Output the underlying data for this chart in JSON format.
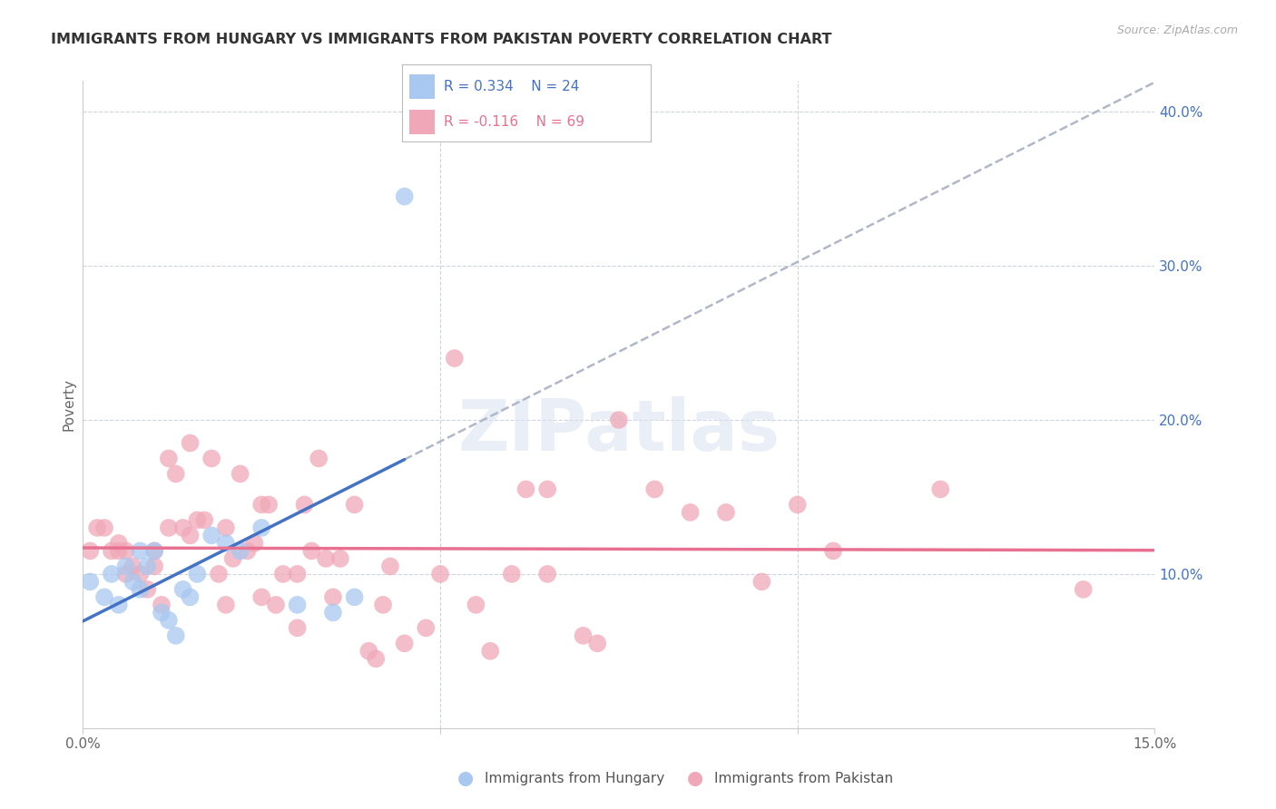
{
  "title": "IMMIGRANTS FROM HUNGARY VS IMMIGRANTS FROM PAKISTAN POVERTY CORRELATION CHART",
  "source": "Source: ZipAtlas.com",
  "ylabel": "Poverty",
  "xlim": [
    0.0,
    0.15
  ],
  "ylim": [
    0.0,
    0.42
  ],
  "hungary_color": "#a8c8f0",
  "pakistan_color": "#f0a8b8",
  "hungary_line_color": "#4472c4",
  "pakistan_line_color": "#e87090",
  "trend_line_color": "#b0b8c8",
  "legend_hungary_label": "Immigrants from Hungary",
  "legend_pakistan_label": "Immigrants from Pakistan",
  "R_hungary": 0.334,
  "N_hungary": 24,
  "R_pakistan": -0.116,
  "N_pakistan": 69,
  "watermark": "ZIPatlas",
  "background_color": "#ffffff",
  "grid_color": "#ccd5e0",
  "hungary_x": [
    0.001,
    0.003,
    0.004,
    0.005,
    0.006,
    0.007,
    0.008,
    0.008,
    0.009,
    0.01,
    0.011,
    0.012,
    0.013,
    0.014,
    0.015,
    0.016,
    0.018,
    0.02,
    0.022,
    0.025,
    0.03,
    0.035,
    0.038,
    0.045
  ],
  "hungary_y": [
    0.095,
    0.085,
    0.1,
    0.08,
    0.105,
    0.095,
    0.09,
    0.115,
    0.105,
    0.115,
    0.075,
    0.07,
    0.06,
    0.09,
    0.085,
    0.1,
    0.125,
    0.12,
    0.115,
    0.13,
    0.08,
    0.075,
    0.085,
    0.345
  ],
  "pakistan_x": [
    0.001,
    0.002,
    0.003,
    0.004,
    0.005,
    0.005,
    0.006,
    0.006,
    0.007,
    0.008,
    0.009,
    0.01,
    0.01,
    0.011,
    0.012,
    0.012,
    0.013,
    0.014,
    0.015,
    0.015,
    0.016,
    0.017,
    0.018,
    0.019,
    0.02,
    0.02,
    0.021,
    0.022,
    0.023,
    0.024,
    0.025,
    0.025,
    0.026,
    0.027,
    0.028,
    0.03,
    0.03,
    0.031,
    0.032,
    0.033,
    0.034,
    0.035,
    0.036,
    0.038,
    0.04,
    0.041,
    0.042,
    0.043,
    0.045,
    0.048,
    0.05,
    0.052,
    0.055,
    0.057,
    0.06,
    0.062,
    0.065,
    0.065,
    0.07,
    0.072,
    0.075,
    0.08,
    0.085,
    0.09,
    0.095,
    0.1,
    0.105,
    0.12,
    0.14
  ],
  "pakistan_y": [
    0.115,
    0.13,
    0.13,
    0.115,
    0.115,
    0.12,
    0.1,
    0.115,
    0.105,
    0.1,
    0.09,
    0.105,
    0.115,
    0.08,
    0.13,
    0.175,
    0.165,
    0.13,
    0.125,
    0.185,
    0.135,
    0.135,
    0.175,
    0.1,
    0.13,
    0.08,
    0.11,
    0.165,
    0.115,
    0.12,
    0.085,
    0.145,
    0.145,
    0.08,
    0.1,
    0.065,
    0.1,
    0.145,
    0.115,
    0.175,
    0.11,
    0.085,
    0.11,
    0.145,
    0.05,
    0.045,
    0.08,
    0.105,
    0.055,
    0.065,
    0.1,
    0.24,
    0.08,
    0.05,
    0.1,
    0.155,
    0.1,
    0.155,
    0.06,
    0.055,
    0.2,
    0.155,
    0.14,
    0.14,
    0.095,
    0.145,
    0.115,
    0.155,
    0.09
  ],
  "hungary_line_x": [
    0.0,
    0.045
  ],
  "dashed_line_x": [
    0.045,
    0.15
  ]
}
